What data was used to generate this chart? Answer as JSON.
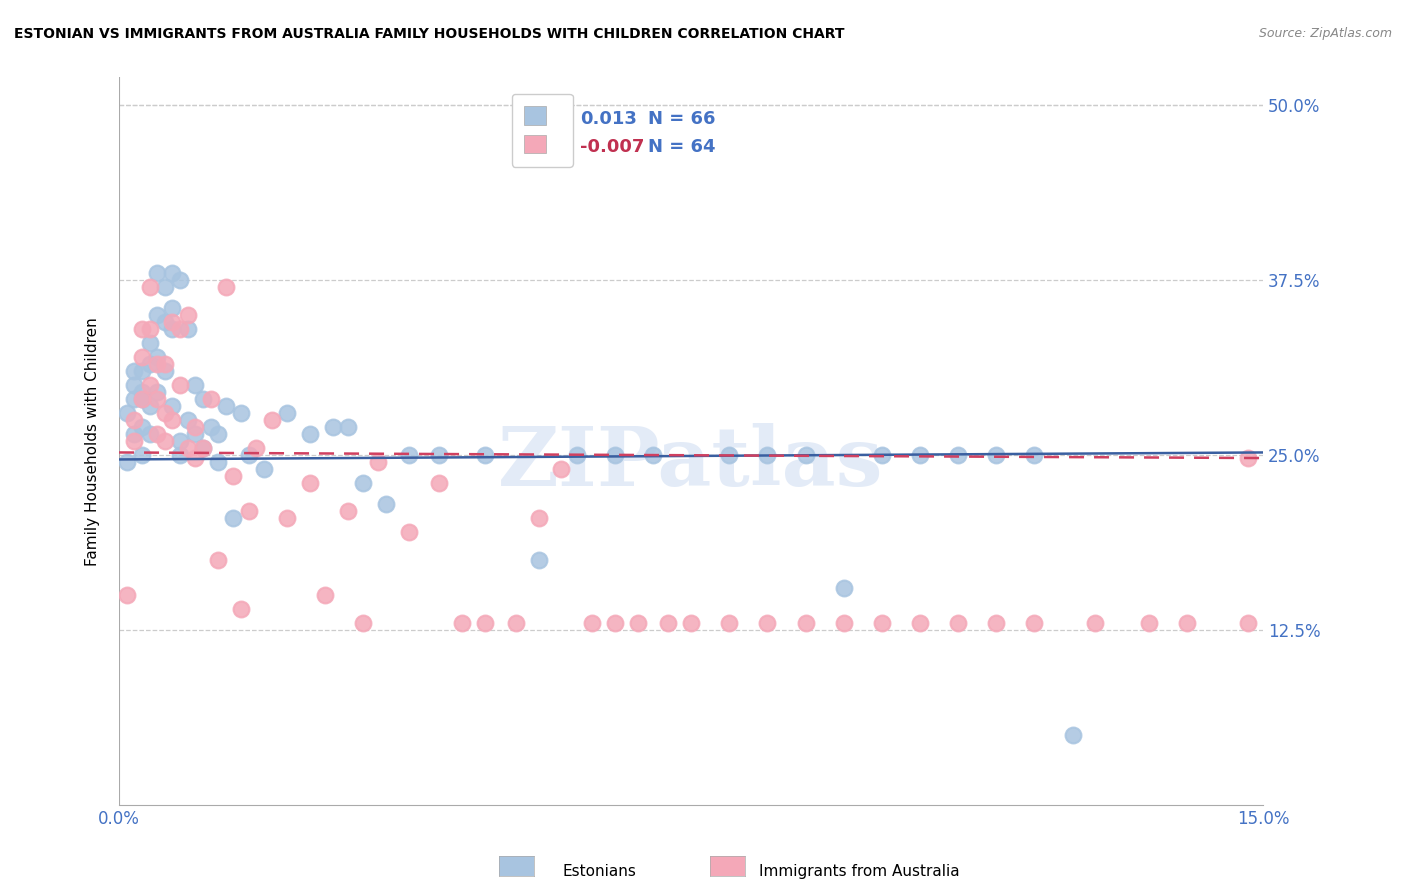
{
  "title": "ESTONIAN VS IMMIGRANTS FROM AUSTRALIA FAMILY HOUSEHOLDS WITH CHILDREN CORRELATION CHART",
  "source": "Source: ZipAtlas.com",
  "ylabel": "Family Households with Children",
  "ytick_labels": [
    "12.5%",
    "25.0%",
    "37.5%",
    "50.0%"
  ],
  "ytick_values": [
    0.125,
    0.25,
    0.375,
    0.5
  ],
  "xlim": [
    0.0,
    0.15
  ],
  "ylim": [
    0.0,
    0.52
  ],
  "color_estonian": "#a8c4e0",
  "color_immigrant": "#f4a8b8",
  "line_color_estonian": "#3a5fa0",
  "line_color_immigrant": "#d04060",
  "watermark": "ZIPatlas",
  "estonians_x": [
    0.001,
    0.001,
    0.002,
    0.002,
    0.002,
    0.002,
    0.003,
    0.003,
    0.003,
    0.003,
    0.003,
    0.004,
    0.004,
    0.004,
    0.004,
    0.005,
    0.005,
    0.005,
    0.005,
    0.006,
    0.006,
    0.006,
    0.007,
    0.007,
    0.007,
    0.007,
    0.008,
    0.008,
    0.008,
    0.009,
    0.009,
    0.01,
    0.01,
    0.011,
    0.011,
    0.012,
    0.013,
    0.013,
    0.014,
    0.015,
    0.016,
    0.017,
    0.019,
    0.022,
    0.025,
    0.028,
    0.03,
    0.032,
    0.035,
    0.038,
    0.042,
    0.048,
    0.055,
    0.06,
    0.065,
    0.07,
    0.08,
    0.085,
    0.09,
    0.095,
    0.1,
    0.105,
    0.11,
    0.115,
    0.12,
    0.125
  ],
  "estonians_y": [
    0.245,
    0.28,
    0.3,
    0.31,
    0.29,
    0.265,
    0.295,
    0.31,
    0.29,
    0.27,
    0.25,
    0.315,
    0.33,
    0.285,
    0.265,
    0.38,
    0.35,
    0.32,
    0.295,
    0.37,
    0.345,
    0.31,
    0.38,
    0.355,
    0.34,
    0.285,
    0.375,
    0.26,
    0.25,
    0.34,
    0.275,
    0.3,
    0.265,
    0.29,
    0.255,
    0.27,
    0.265,
    0.245,
    0.285,
    0.205,
    0.28,
    0.25,
    0.24,
    0.28,
    0.265,
    0.27,
    0.27,
    0.23,
    0.215,
    0.25,
    0.25,
    0.25,
    0.175,
    0.25,
    0.25,
    0.25,
    0.25,
    0.25,
    0.25,
    0.155,
    0.25,
    0.25,
    0.25,
    0.25,
    0.25,
    0.05
  ],
  "immigrants_x": [
    0.001,
    0.002,
    0.002,
    0.003,
    0.003,
    0.003,
    0.004,
    0.004,
    0.004,
    0.005,
    0.005,
    0.005,
    0.006,
    0.006,
    0.006,
    0.007,
    0.007,
    0.008,
    0.008,
    0.009,
    0.009,
    0.01,
    0.01,
    0.011,
    0.012,
    0.013,
    0.014,
    0.015,
    0.016,
    0.017,
    0.018,
    0.02,
    0.022,
    0.025,
    0.027,
    0.03,
    0.032,
    0.034,
    0.038,
    0.042,
    0.045,
    0.048,
    0.052,
    0.055,
    0.058,
    0.062,
    0.065,
    0.068,
    0.072,
    0.075,
    0.08,
    0.085,
    0.09,
    0.095,
    0.1,
    0.105,
    0.11,
    0.115,
    0.12,
    0.128,
    0.135,
    0.14,
    0.148,
    0.148
  ],
  "immigrants_y": [
    0.15,
    0.26,
    0.275,
    0.32,
    0.34,
    0.29,
    0.37,
    0.34,
    0.3,
    0.315,
    0.29,
    0.265,
    0.315,
    0.28,
    0.26,
    0.345,
    0.275,
    0.34,
    0.3,
    0.35,
    0.255,
    0.27,
    0.248,
    0.255,
    0.29,
    0.175,
    0.37,
    0.235,
    0.14,
    0.21,
    0.255,
    0.275,
    0.205,
    0.23,
    0.15,
    0.21,
    0.13,
    0.245,
    0.195,
    0.23,
    0.13,
    0.13,
    0.13,
    0.205,
    0.24,
    0.13,
    0.13,
    0.13,
    0.13,
    0.13,
    0.13,
    0.13,
    0.13,
    0.13,
    0.13,
    0.13,
    0.13,
    0.13,
    0.13,
    0.13,
    0.13,
    0.13,
    0.13,
    0.248
  ]
}
